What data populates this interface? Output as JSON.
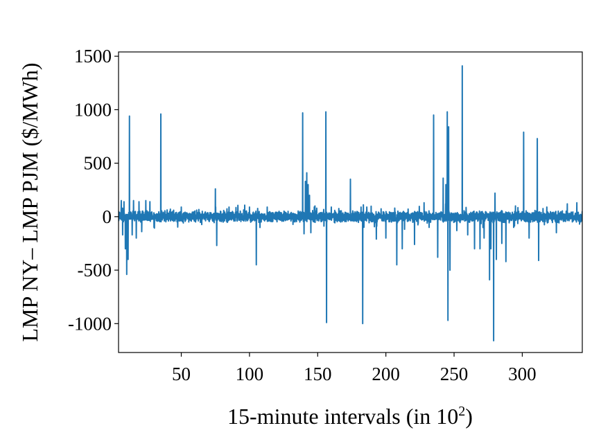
{
  "chart_data": {
    "type": "line",
    "title": "",
    "xlabel": "15-minute intervals (in 10",
    "xlabel_sup": "2",
    "xlabel_end": ")",
    "ylabel": "LMP NY– LMP PJM ($/MWh)",
    "xlim": [
      4,
      344
    ],
    "ylim": [
      -1270,
      1540
    ],
    "xticks": [
      50,
      100,
      150,
      200,
      250,
      300
    ],
    "yticks": [
      1500,
      1000,
      500,
      0,
      -500,
      -1000
    ],
    "grid": false,
    "legend": "none",
    "series": [
      {
        "color": "#1f77b4",
        "baseline_noise": 40,
        "spikes": [
          {
            "x": 6,
            "y": 150
          },
          {
            "x": 7,
            "y": -170
          },
          {
            "x": 8,
            "y": 140
          },
          {
            "x": 9,
            "y": -300
          },
          {
            "x": 10,
            "y": -540
          },
          {
            "x": 11,
            "y": -400
          },
          {
            "x": 12,
            "y": 940
          },
          {
            "x": 14,
            "y": -170
          },
          {
            "x": 15,
            "y": 150
          },
          {
            "x": 17,
            "y": -200
          },
          {
            "x": 19,
            "y": 140
          },
          {
            "x": 21,
            "y": -140
          },
          {
            "x": 24,
            "y": 150
          },
          {
            "x": 27,
            "y": 140
          },
          {
            "x": 30,
            "y": -100
          },
          {
            "x": 35,
            "y": 960
          },
          {
            "x": 42,
            "y": 70
          },
          {
            "x": 50,
            "y": 90
          },
          {
            "x": 75,
            "y": 260
          },
          {
            "x": 76,
            "y": -270
          },
          {
            "x": 85,
            "y": 90
          },
          {
            "x": 100,
            "y": 90
          },
          {
            "x": 105,
            "y": -450
          },
          {
            "x": 113,
            "y": 90
          },
          {
            "x": 139,
            "y": 970
          },
          {
            "x": 140,
            "y": -160
          },
          {
            "x": 141,
            "y": 330
          },
          {
            "x": 142,
            "y": 410
          },
          {
            "x": 143,
            "y": 300
          },
          {
            "x": 144,
            "y": 200
          },
          {
            "x": 145,
            "y": -150
          },
          {
            "x": 148,
            "y": 100
          },
          {
            "x": 156,
            "y": 980
          },
          {
            "x": 156.5,
            "y": -990
          },
          {
            "x": 160,
            "y": 90
          },
          {
            "x": 174,
            "y": 350
          },
          {
            "x": 183,
            "y": -1000
          },
          {
            "x": 186,
            "y": 90
          },
          {
            "x": 193,
            "y": -210
          },
          {
            "x": 200,
            "y": -200
          },
          {
            "x": 208,
            "y": -450
          },
          {
            "x": 212,
            "y": -300
          },
          {
            "x": 221,
            "y": -260
          },
          {
            "x": 228,
            "y": 130
          },
          {
            "x": 235,
            "y": 950
          },
          {
            "x": 238,
            "y": -380
          },
          {
            "x": 242,
            "y": 360
          },
          {
            "x": 244,
            "y": 300
          },
          {
            "x": 245,
            "y": 980
          },
          {
            "x": 245.5,
            "y": -970
          },
          {
            "x": 246,
            "y": 840
          },
          {
            "x": 247,
            "y": -500
          },
          {
            "x": 252,
            "y": -130
          },
          {
            "x": 256,
            "y": 1410
          },
          {
            "x": 260,
            "y": -170
          },
          {
            "x": 265,
            "y": -300
          },
          {
            "x": 269,
            "y": -300
          },
          {
            "x": 272,
            "y": -200
          },
          {
            "x": 276,
            "y": -590
          },
          {
            "x": 277,
            "y": -300
          },
          {
            "x": 279,
            "y": -1160
          },
          {
            "x": 280,
            "y": 220
          },
          {
            "x": 281,
            "y": -400
          },
          {
            "x": 285,
            "y": -250
          },
          {
            "x": 288,
            "y": -420
          },
          {
            "x": 295,
            "y": 100
          },
          {
            "x": 301,
            "y": 790
          },
          {
            "x": 305,
            "y": -200
          },
          {
            "x": 311,
            "y": 730
          },
          {
            "x": 312,
            "y": -410
          },
          {
            "x": 318,
            "y": 90
          },
          {
            "x": 325,
            "y": -150
          },
          {
            "x": 333,
            "y": 120
          },
          {
            "x": 340,
            "y": 130
          },
          {
            "x": 342,
            "y": -70
          }
        ]
      }
    ]
  }
}
